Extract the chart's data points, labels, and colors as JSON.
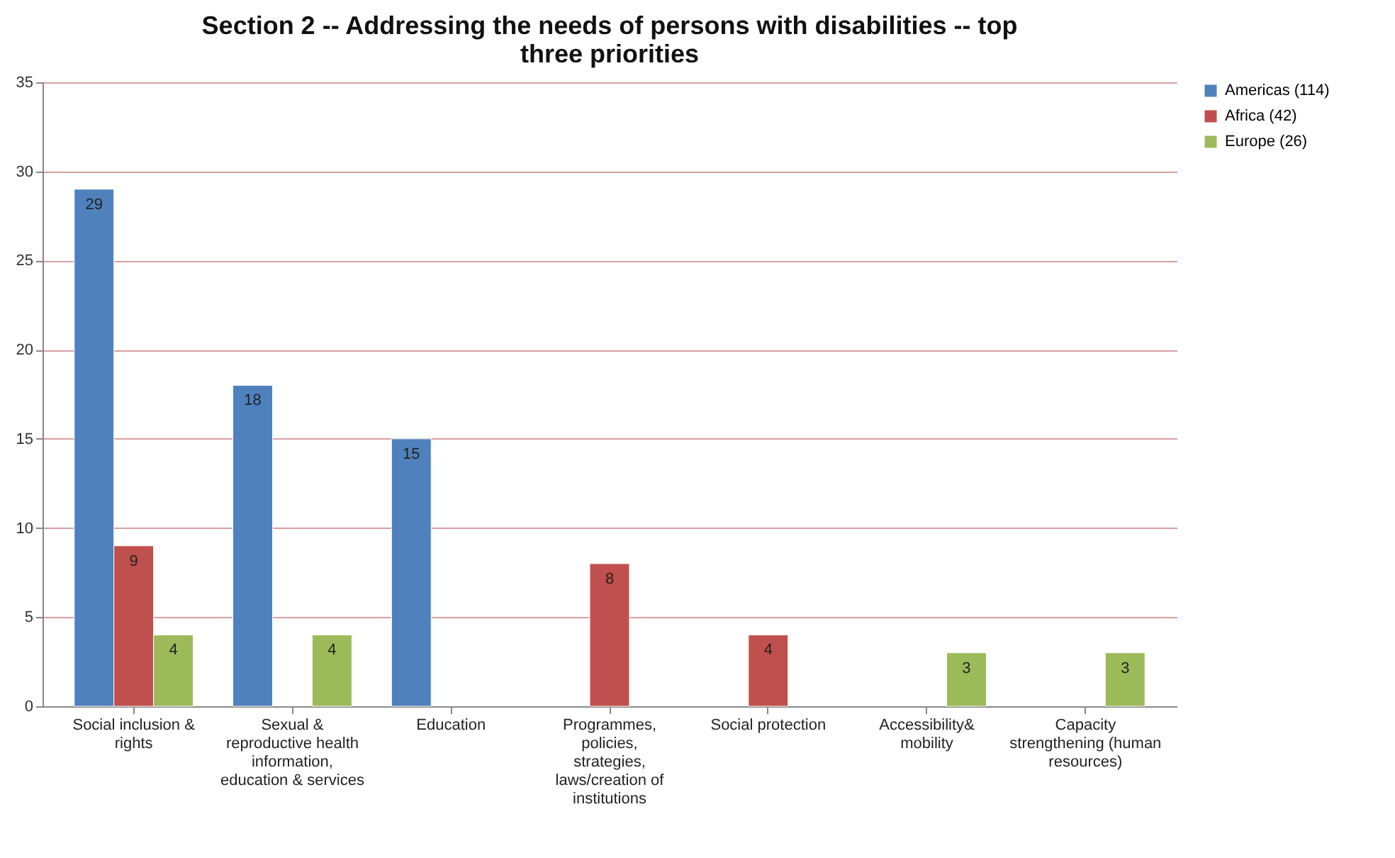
{
  "chart_data": {
    "type": "bar",
    "title": "Section 2 -- Addressing the needs of persons with disabilities -- top three priorities",
    "categories": [
      "Social inclusion & rights",
      "Sexual & reproductive health information, education & services",
      "Education",
      "Programmes, policies, strategies, laws/creation of institutions",
      "Social protection",
      "Accessibility& mobility",
      "Capacity strengthening (human resources)"
    ],
    "series": [
      {
        "name": "Americas (114)",
        "color": "#4f81bd",
        "values": [
          29,
          18,
          15,
          null,
          null,
          null,
          null
        ]
      },
      {
        "name": "Africa (42)",
        "color": "#c0504d",
        "values": [
          9,
          null,
          null,
          8,
          4,
          null,
          null
        ]
      },
      {
        "name": "Europe (26)",
        "color": "#9bbb59",
        "values": [
          4,
          4,
          null,
          null,
          null,
          3,
          3
        ]
      }
    ],
    "ylim": [
      0,
      35
    ],
    "yticks": [
      0,
      5,
      10,
      15,
      20,
      25,
      30,
      35
    ],
    "grid": "y",
    "legend": "right",
    "data_labels": true
  }
}
